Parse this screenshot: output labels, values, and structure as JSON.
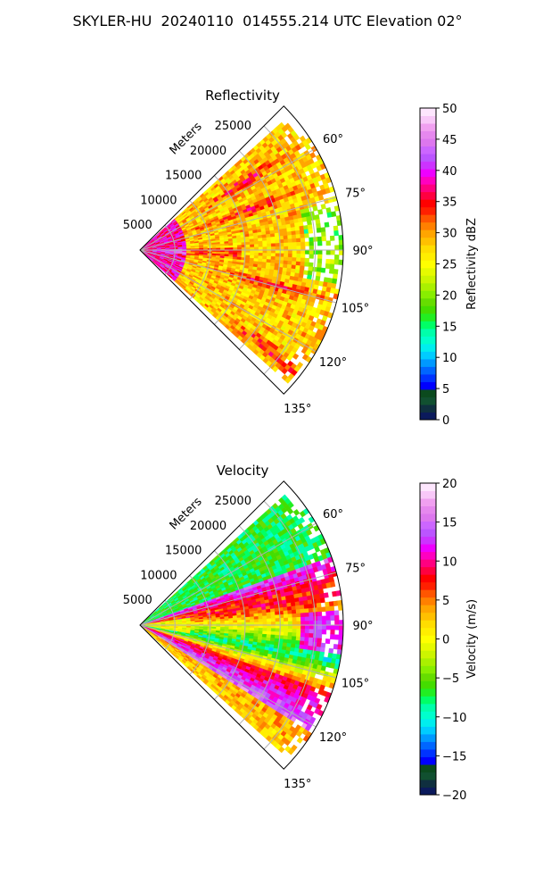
{
  "figure_title": "SKYLER-HU  20240110  014555.214 UTC Elevation 02°",
  "chart_data": [
    {
      "type": "heatmap",
      "title": "Reflectivity",
      "projection": "polar-sector",
      "range_label": "Meters",
      "range_ticks": [
        5000,
        10000,
        15000,
        20000,
        25000
      ],
      "range_max": 29000,
      "azimuth_ticks": [
        "60°",
        "75°",
        "90°",
        "105°",
        "120°",
        "135°"
      ],
      "azimuth_values": [
        60,
        75,
        90,
        105,
        120,
        135
      ],
      "azimuth_range": [
        45,
        135
      ],
      "grid": true,
      "colorbar": {
        "label": "Reflectivity dBZ",
        "range": [
          0,
          50
        ],
        "ticks": [
          "0",
          "5",
          "10",
          "15",
          "20",
          "25",
          "30",
          "35",
          "40",
          "45",
          "50"
        ],
        "colors": [
          "#0b1a5c",
          "#0f2f3f",
          "#115030",
          "#0b4a1e",
          "#0000ff",
          "#0033ff",
          "#0066ff",
          "#0099ff",
          "#00ccff",
          "#00eeee",
          "#00ffcc",
          "#00ffaa",
          "#00ff66",
          "#22ee22",
          "#44dd00",
          "#66dd00",
          "#88ee00",
          "#aaf000",
          "#ccf500",
          "#e6fa00",
          "#ffff00",
          "#ffee00",
          "#ffdd00",
          "#ffc000",
          "#ffa500",
          "#ff8000",
          "#ff5500",
          "#ff2000",
          "#ff0000",
          "#ff0040",
          "#ff0080",
          "#ff00c0",
          "#ee00ff",
          "#cc33ff",
          "#bb55ff",
          "#cc66ff",
          "#dd77ee",
          "#e688ee",
          "#f0a0f0",
          "#f8c8f8",
          "#fde6fd"
        ]
      },
      "description_values": "mostly 25-35 dBZ with bands near 35-40 dBZ close to radar"
    },
    {
      "type": "heatmap",
      "title": "Velocity",
      "projection": "polar-sector",
      "range_label": "Meters",
      "range_ticks": [
        5000,
        10000,
        15000,
        20000,
        25000
      ],
      "range_max": 29000,
      "azimuth_ticks": [
        "60°",
        "75°",
        "90°",
        "105°",
        "120°",
        "135°"
      ],
      "azimuth_values": [
        60,
        75,
        90,
        105,
        120,
        135
      ],
      "azimuth_range": [
        45,
        135
      ],
      "grid": true,
      "colorbar": {
        "label": "Velocity (m/s)",
        "range": [
          -20,
          20
        ],
        "ticks": [
          "−20",
          "−15",
          "−10",
          "−5",
          "0",
          "5",
          "10",
          "15",
          "20"
        ],
        "colors": [
          "#0b1a5c",
          "#0f2f3f",
          "#115030",
          "#0b4a1e",
          "#0000ff",
          "#0033ff",
          "#0066ff",
          "#0099ff",
          "#00ccff",
          "#00eeee",
          "#00ffcc",
          "#00ffaa",
          "#00ff66",
          "#22ee22",
          "#44dd00",
          "#66dd00",
          "#88ee00",
          "#aaf000",
          "#ccf500",
          "#e6fa00",
          "#ffff00",
          "#ffee00",
          "#ffdd00",
          "#ffc000",
          "#ffa500",
          "#ff8000",
          "#ff5500",
          "#ff2000",
          "#ff0000",
          "#ff0040",
          "#ff0080",
          "#ff00c0",
          "#ee00ff",
          "#cc33ff",
          "#bb55ff",
          "#cc66ff",
          "#dd77ee",
          "#e688ee",
          "#f0a0f0",
          "#f8c8f8",
          "#fde6fd"
        ]
      }
    }
  ]
}
